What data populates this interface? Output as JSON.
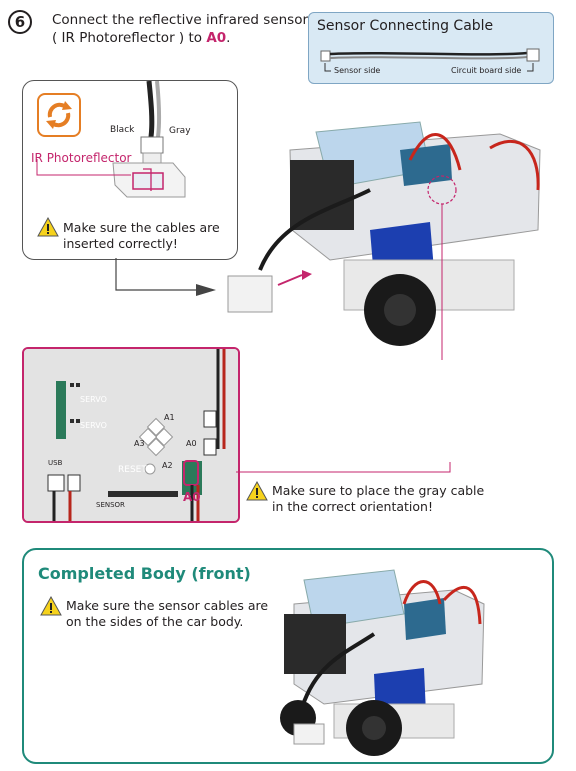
{
  "step": {
    "number": "6",
    "line1": "Connect the reflective infrared sensor",
    "line2_prefix": "( IR Photoreflector ) to ",
    "line2_port": "A0",
    "line2_suffix": "."
  },
  "cable_box": {
    "title": "Sensor Connecting Cable",
    "sensor_side": "Sensor side",
    "board_side": "Circuit board side"
  },
  "callout": {
    "wire_black": "Black",
    "wire_gray": "Gray",
    "ir_label": "IR Photoreflector",
    "warning_line1": "Make sure the cables are",
    "warning_line2": "inserted correctly!"
  },
  "board": {
    "port_label": "A0",
    "silk_a1": "A1",
    "silk_a0": "A0",
    "silk_a3": "A3",
    "silk_a2": "A2",
    "silk_reset": "RESET",
    "silk_servo1": "SERVO",
    "silk_servo2": "SERVO",
    "silk_sensor": "SENSOR",
    "silk_usb": "USB"
  },
  "orientation_warning": {
    "line1": "Make sure to place the gray cable",
    "line2": "in the correct orientation!"
  },
  "completed": {
    "title": "Completed Body (front)",
    "warning_line1": "Make sure the sensor cables are",
    "warning_line2": "on the sides of the car body."
  },
  "colors": {
    "accent_pink": "#c4256c",
    "teal": "#1f8a7a",
    "cable_box_bg": "#d9e9f4",
    "warning_yellow": "#f6d21c",
    "orange_icon": "#e57e24"
  },
  "icons": [
    "warning-icon",
    "rotate-icon",
    "arrow-icon"
  ]
}
